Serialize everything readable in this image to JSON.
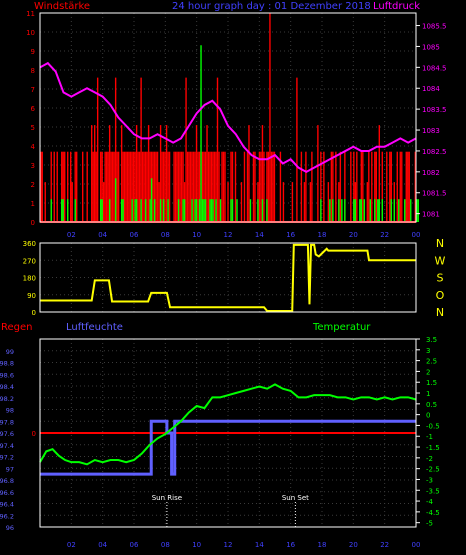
{
  "colors": {
    "background": "#000000",
    "frame": "#ffffff",
    "grid": "#3a3a3a",
    "wind_gust": "#ff0000",
    "wind_avg": "#00ff00",
    "pressure": "#ff00ff",
    "direction": "#ffff00",
    "rain": "#ff0000",
    "humidity": "#6060ff",
    "temperature": "#00ff00",
    "sun_marker": "#ffffff",
    "title_text": "#4040ff"
  },
  "x_ticks": [
    "02",
    "04",
    "06",
    "08",
    "10",
    "12",
    "14",
    "16",
    "18",
    "20",
    "22",
    "00"
  ],
  "chart_data": [
    {
      "type": "bar",
      "name": "wind-pressure",
      "title": "24 hour graph day : 01 Dezember 2018",
      "left_label": "Windstärke",
      "right_label": "Luftdruck",
      "x_range": [
        0,
        24
      ],
      "left_ylim": [
        0,
        11
      ],
      "left_ticks": [
        "0",
        "1",
        "2",
        "3",
        "4",
        "5",
        "6",
        "7",
        "8",
        "9",
        "10",
        "11"
      ],
      "right_ylim": [
        1080.8,
        1085.8
      ],
      "right_ticks": [
        "1081",
        "1081.5",
        "1082",
        "1082.5",
        "1083",
        "1083.5",
        "1084",
        "1084.5",
        "1085",
        "1085.5"
      ],
      "pressure": {
        "x": [
          0,
          0.5,
          1,
          1.5,
          2,
          2.5,
          3,
          3.5,
          4,
          4.5,
          5,
          5.5,
          6,
          6.5,
          7,
          7.5,
          8,
          8.5,
          9,
          9.5,
          10,
          10.5,
          11,
          11.5,
          12,
          12.5,
          13,
          13.5,
          14,
          14.5,
          15,
          15.5,
          16,
          16.5,
          17,
          17.5,
          18,
          18.5,
          19,
          19.5,
          20,
          20.5,
          21,
          21.5,
          22,
          22.5,
          23,
          23.5,
          24
        ],
        "y": [
          1084.5,
          1084.6,
          1084.4,
          1083.9,
          1083.8,
          1083.9,
          1084.0,
          1083.9,
          1083.8,
          1083.6,
          1083.3,
          1083.1,
          1082.9,
          1082.8,
          1082.8,
          1082.9,
          1082.8,
          1082.7,
          1082.8,
          1083.1,
          1083.4,
          1083.6,
          1083.7,
          1083.5,
          1083.1,
          1082.9,
          1082.6,
          1082.4,
          1082.3,
          1082.3,
          1082.4,
          1082.2,
          1082.3,
          1082.1,
          1082.0,
          1082.1,
          1082.2,
          1082.3,
          1082.4,
          1082.5,
          1082.6,
          1082.5,
          1082.5,
          1082.6,
          1082.6,
          1082.7,
          1082.8,
          1082.7,
          1082.8
        ]
      },
      "gust_values": [
        3.7,
        3.7,
        0,
        2.1,
        0,
        0,
        0,
        3.7,
        0,
        3.7,
        0,
        3.7,
        0,
        0,
        3.7,
        3.7,
        3.7,
        0,
        3.7,
        0,
        3.7,
        2.1,
        0,
        3.7,
        3.7,
        0,
        0,
        0,
        3.7,
        0,
        0,
        3.7,
        0,
        0,
        5.1,
        3.7,
        5.1,
        3.7,
        7.6,
        0,
        3.7,
        3.7,
        2.1,
        3.7,
        3.7,
        3.7,
        5.1,
        3.7,
        3.7,
        3.7,
        7.6,
        3.7,
        3.7,
        0,
        5.1,
        3.7,
        3.7,
        3.7,
        3.7,
        3.7,
        3.7,
        3.7,
        3.7,
        3.7,
        5.1,
        3.7,
        3.7,
        7.6,
        3.7,
        3.7,
        3.7,
        3.7,
        5.1,
        3.7,
        3.7,
        3.7,
        3.7,
        3.7,
        3.7,
        2.1,
        5.1,
        3.7,
        3.7,
        3.7,
        5.1,
        3.7,
        3.7,
        0,
        0,
        3.7,
        3.7,
        3.7,
        3.7,
        3.7,
        3.7,
        3.7,
        2.1,
        7.6,
        3.7,
        3.7,
        3.7,
        3.7,
        3.7,
        3.7,
        5.1,
        3.7,
        3.7,
        3.7,
        3.7,
        3.7,
        3.7,
        5.1,
        3.7,
        3.7,
        3.7,
        3.7,
        3.7,
        3.7,
        7.6,
        3.7,
        0,
        3.7,
        3.7,
        3.7,
        0,
        2.1,
        0,
        3.7,
        3.7,
        0,
        3.7,
        0,
        0,
        0,
        2.1,
        0,
        3.7,
        0,
        3.7,
        5.1,
        0,
        0,
        3.7,
        3.7,
        0,
        2.1,
        3.7,
        3.7,
        5.1,
        3.7,
        0,
        3.7,
        3.7,
        11,
        3.7,
        3.7,
        3.7,
        0,
        0,
        0,
        3.7,
        0,
        2.1,
        0,
        0,
        0,
        0,
        0,
        2.1,
        0,
        0,
        7.6,
        0,
        0,
        3.7,
        0,
        2.1,
        3.7,
        0,
        0,
        2.1,
        3.7,
        0,
        0,
        0,
        5.1,
        0,
        3.7,
        0,
        3.7,
        0,
        0,
        2.1,
        0,
        3.7,
        3.7,
        0,
        3.7,
        0,
        2.1,
        3.7,
        0,
        0,
        3.7,
        0,
        0,
        0,
        3.7,
        0,
        3.7,
        2.1,
        3.7,
        0,
        0,
        3.7,
        3.7,
        0,
        0,
        2.1,
        3.7,
        0,
        3.7,
        0,
        3.7,
        3.7,
        0,
        5.1,
        0,
        3.7,
        0,
        0,
        3.7,
        0,
        3.7,
        3.7,
        0,
        2.1,
        0,
        3.7,
        0,
        3.7,
        3.7,
        0,
        0,
        3.7,
        3.7,
        3.7,
        0,
        0,
        0,
        3.7
      ],
      "avg_values": [
        0,
        0,
        0,
        0,
        0,
        0,
        0,
        1.2,
        0,
        0,
        0,
        0,
        0,
        0,
        1.2,
        1.2,
        0,
        0,
        1.2,
        0,
        0,
        0,
        0,
        1.2,
        0,
        0,
        0,
        0,
        0,
        0,
        0,
        0,
        0,
        0,
        0,
        0,
        0,
        0,
        0,
        0,
        1.2,
        1.2,
        0,
        0,
        0,
        0,
        1.2,
        0,
        0,
        0,
        2.3,
        0,
        0,
        0,
        1.2,
        1.2,
        0,
        0,
        0,
        0,
        0,
        1.2,
        0,
        1.2,
        1.2,
        0,
        0,
        1.2,
        0,
        0,
        1.2,
        0,
        0,
        1.2,
        2.3,
        0,
        1.2,
        0,
        0,
        0,
        1.2,
        0,
        1.2,
        0,
        0,
        1.2,
        0,
        0,
        0,
        0,
        0,
        0,
        1.2,
        0,
        0,
        1.2,
        1.2,
        0,
        0,
        0,
        0,
        1.2,
        0,
        1.2,
        1.2,
        0,
        1.2,
        9.3,
        1.2,
        1.2,
        1.2,
        0,
        0,
        1.2,
        1.2,
        1.2,
        0,
        1.2,
        0,
        0,
        1.2,
        0,
        0,
        0,
        0,
        0,
        0,
        1.2,
        1.2,
        0,
        0,
        1.2,
        0,
        0,
        0,
        0,
        0,
        0,
        0,
        0,
        1.2,
        0,
        0,
        0,
        0,
        1.2,
        0,
        0,
        1.2,
        0,
        0,
        1.2,
        0,
        0,
        0,
        0,
        0,
        0,
        0,
        0,
        0,
        0,
        0,
        0,
        0,
        0,
        0,
        0,
        0,
        0,
        0,
        0,
        0,
        0,
        0,
        0,
        0,
        0,
        0,
        0,
        0,
        0,
        0,
        0,
        0,
        0,
        0,
        1.2,
        0,
        0,
        0,
        0,
        0,
        1.2,
        0,
        1.2,
        0,
        0,
        0,
        1.2,
        0,
        1.2,
        0,
        1.2,
        0,
        0,
        0,
        0,
        0,
        1.2,
        1.2,
        0,
        0,
        1.2,
        1.2,
        0,
        1.2,
        0,
        0,
        0,
        1.2,
        0,
        0,
        1.2,
        0,
        1.2,
        1.2,
        0,
        1.2,
        0,
        0,
        0,
        0,
        0,
        1.2,
        0,
        1.2,
        0,
        0,
        1.2,
        0,
        0,
        0,
        1.2,
        0,
        0,
        0,
        1.2,
        0,
        0,
        0,
        1.2,
        1.2,
        0,
        0
      ]
    },
    {
      "type": "line",
      "name": "wind-direction",
      "x_range": [
        0,
        24
      ],
      "ylim": [
        0,
        360
      ],
      "y_ticks": [
        "0",
        "90",
        "180",
        "270",
        "360"
      ],
      "compass_labels": [
        "N",
        "W",
        "S",
        "O",
        "N"
      ],
      "direction": {
        "x": [
          0,
          3.3,
          3.5,
          4.4,
          4.6,
          6.9,
          7.1,
          8.1,
          8.3,
          14.3,
          14.5,
          16.1,
          16.2,
          17.1,
          17.2,
          17.3,
          17.5,
          17.6,
          17.8,
          18.3,
          18.4,
          20.9,
          21.0,
          24
        ],
        "y": [
          60,
          60,
          165,
          165,
          55,
          55,
          100,
          100,
          25,
          25,
          5,
          5,
          350,
          350,
          40,
          350,
          350,
          300,
          290,
          330,
          320,
          320,
          270,
          270
        ]
      }
    },
    {
      "type": "line",
      "name": "humidity-temperature",
      "rain_label": "Regen",
      "humidity_label": "Luftfeuchte",
      "temperature_label": "Temperatur",
      "x_range": [
        0,
        24
      ],
      "rain_ylim": [
        -1,
        1
      ],
      "rain_ticks": [
        "0"
      ],
      "humidity_ylim": [
        96,
        99.2
      ],
      "humidity_ticks": [
        "99",
        "98.8",
        "98.6",
        "98.4",
        "98.2",
        "98",
        "97.8",
        "97.6",
        "97.4",
        "97.2",
        "97",
        "96.8",
        "96.6",
        "96.4",
        "96.2",
        "96"
      ],
      "temp_ylim": [
        -5.2,
        3.5
      ],
      "temp_ticks": [
        "3.5",
        "3",
        "2.5",
        "2",
        "1.5",
        "1",
        "0.5",
        "0",
        "-0.5",
        "-1",
        "-1.5",
        "-2",
        "-2.5",
        "-3",
        "-3.5",
        "-4",
        "-4.5",
        "-5"
      ],
      "rain": {
        "x": [
          0,
          24
        ],
        "y": [
          0,
          0
        ]
      },
      "humidity": {
        "x": [
          0,
          7.1,
          7.1,
          8.1,
          8.1,
          8.4,
          8.4,
          8.6,
          8.6,
          8.8,
          8.8,
          24
        ],
        "y": [
          96.9,
          96.9,
          97.8,
          97.8,
          97.6,
          97.6,
          96.9,
          96.9,
          97.8,
          97.8,
          97.8,
          97.8
        ]
      },
      "temperature": {
        "x": [
          0,
          0.4,
          0.8,
          1.2,
          1.6,
          2,
          2.5,
          3,
          3.5,
          4,
          4.5,
          5,
          5.5,
          6,
          6.5,
          7,
          7.5,
          8,
          8.5,
          9,
          9.5,
          10,
          10.5,
          11,
          11.5,
          12,
          12.5,
          13,
          13.5,
          14,
          14.5,
          15,
          15.5,
          16,
          16.5,
          17,
          17.5,
          18,
          18.5,
          19,
          19.5,
          20,
          20.5,
          21,
          21.5,
          22,
          22.5,
          23,
          23.5,
          24
        ],
        "y": [
          -2.2,
          -1.7,
          -1.6,
          -1.9,
          -2.1,
          -2.2,
          -2.2,
          -2.3,
          -2.1,
          -2.2,
          -2.1,
          -2.1,
          -2.2,
          -2.1,
          -1.8,
          -1.4,
          -1.1,
          -0.9,
          -0.6,
          -0.3,
          0.1,
          0.4,
          0.3,
          0.8,
          0.8,
          0.9,
          1.0,
          1.1,
          1.2,
          1.3,
          1.2,
          1.4,
          1.2,
          1.1,
          0.8,
          0.8,
          0.9,
          0.9,
          0.9,
          0.8,
          0.8,
          0.7,
          0.8,
          0.8,
          0.7,
          0.8,
          0.7,
          0.8,
          0.8,
          0.7
        ]
      },
      "sun_events": [
        {
          "label": "Sun Rise",
          "x": 8.1
        },
        {
          "label": "Sun Set",
          "x": 16.3
        }
      ]
    }
  ]
}
